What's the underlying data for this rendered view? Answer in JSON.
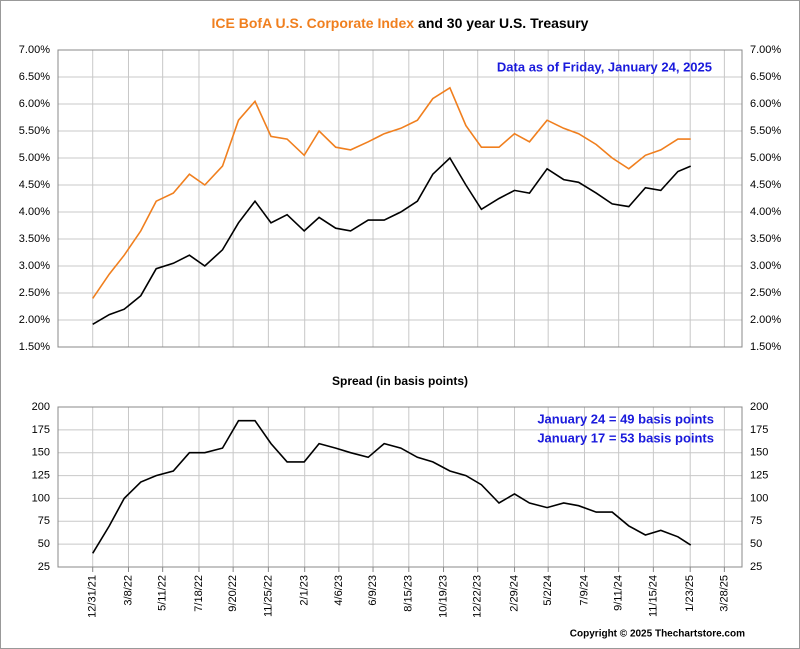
{
  "chart_data": [
    {
      "type": "line",
      "title": {
        "highlight": "ICE BofA U.S. Corporate Index",
        "highlight_color": "#f07f1e",
        "rest": "and 30 year U.S. Treasury"
      },
      "annotation": "Data as of Friday, January 24, 2025",
      "x": [
        "12/31/21",
        "1/31/22",
        "2/28/22",
        "3/31/22",
        "4/29/22",
        "5/31/22",
        "6/30/22",
        "7/29/22",
        "8/31/22",
        "9/30/22",
        "10/31/22",
        "11/30/22",
        "12/30/22",
        "1/31/23",
        "2/28/23",
        "3/31/23",
        "4/28/23",
        "5/31/23",
        "6/30/23",
        "7/31/23",
        "8/31/23",
        "9/29/23",
        "10/31/23",
        "11/30/23",
        "12/29/23",
        "1/31/24",
        "2/29/24",
        "3/28/24",
        "4/30/24",
        "5/31/24",
        "6/28/24",
        "7/31/24",
        "8/30/24",
        "9/30/24",
        "10/31/24",
        "11/29/24",
        "12/31/24",
        "1/24/25"
      ],
      "series": [
        {
          "color": "#f07f1e",
          "values": [
            2.4,
            2.85,
            3.2,
            3.65,
            4.2,
            4.35,
            4.7,
            4.5,
            4.85,
            5.7,
            6.05,
            5.4,
            5.35,
            5.05,
            5.5,
            5.2,
            5.15,
            5.3,
            5.45,
            5.55,
            5.7,
            6.1,
            6.3,
            5.6,
            5.2,
            5.2,
            5.45,
            5.3,
            5.7,
            5.55,
            5.45,
            5.25,
            5.0,
            4.8,
            5.05,
            5.15,
            5.35,
            5.35
          ]
        },
        {
          "color": "#000000",
          "values": [
            1.92,
            2.1,
            2.2,
            2.45,
            2.95,
            3.05,
            3.2,
            3.0,
            3.3,
            3.8,
            4.2,
            3.8,
            3.95,
            3.65,
            3.9,
            3.7,
            3.65,
            3.85,
            3.85,
            4.0,
            4.2,
            4.7,
            5.0,
            4.5,
            4.05,
            4.25,
            4.4,
            4.35,
            4.8,
            4.6,
            4.55,
            4.35,
            4.15,
            4.1,
            4.45,
            4.4,
            4.75,
            4.85
          ]
        }
      ],
      "xlim": [
        "10/27/21",
        "4/30/25"
      ],
      "ylim": [
        1.5,
        7.0
      ],
      "yticks": [
        {
          "value": 1.5,
          "label": "1.50%"
        },
        {
          "value": 2.0,
          "label": "2.00%"
        },
        {
          "value": 2.5,
          "label": "2.50%"
        },
        {
          "value": 3.0,
          "label": "3.00%"
        },
        {
          "value": 3.5,
          "label": "3.50%"
        },
        {
          "value": 4.0,
          "label": "4.00%"
        },
        {
          "value": 4.5,
          "label": "4.50%"
        },
        {
          "value": 5.0,
          "label": "5.00%"
        },
        {
          "value": 5.5,
          "label": "5.50%"
        },
        {
          "value": 6.0,
          "label": "6.00%"
        },
        {
          "value": 6.5,
          "label": "6.50%"
        },
        {
          "value": 7.0,
          "label": "7.00%"
        }
      ],
      "grid": true
    },
    {
      "type": "line",
      "title": "Spread (in basis points)",
      "annotations": [
        "January 24 = 49 basis points",
        "January 17 = 53 basis points"
      ],
      "x": [
        "12/31/21",
        "1/31/22",
        "2/28/22",
        "3/31/22",
        "4/29/22",
        "5/31/22",
        "6/30/22",
        "7/29/22",
        "8/31/22",
        "9/30/22",
        "10/31/22",
        "11/30/22",
        "12/30/22",
        "1/31/23",
        "2/28/23",
        "3/31/23",
        "4/28/23",
        "5/31/23",
        "6/30/23",
        "7/31/23",
        "8/31/23",
        "9/29/23",
        "10/31/23",
        "11/30/23",
        "12/29/23",
        "1/31/24",
        "2/29/24",
        "3/28/24",
        "4/30/24",
        "5/31/24",
        "6/28/24",
        "7/31/24",
        "8/30/24",
        "9/30/24",
        "10/31/24",
        "11/29/24",
        "12/31/24",
        "1/24/25"
      ],
      "series": [
        {
          "color": "#000000",
          "values": [
            40,
            70,
            100,
            118,
            125,
            130,
            150,
            150,
            155,
            185,
            185,
            160,
            140,
            140,
            160,
            155,
            150,
            145,
            160,
            155,
            145,
            140,
            130,
            125,
            115,
            95,
            105,
            95,
            90,
            95,
            92,
            85,
            85,
            70,
            60,
            65,
            58,
            49
          ]
        }
      ],
      "xlim": [
        "10/27/21",
        "4/30/25"
      ],
      "xticks": [
        "12/31/21",
        "3/8/22",
        "5/11/22",
        "7/18/22",
        "9/20/22",
        "11/25/22",
        "2/1/23",
        "4/6/23",
        "6/9/23",
        "8/15/23",
        "10/19/23",
        "12/22/23",
        "2/29/24",
        "5/2/24",
        "7/9/24",
        "9/11/24",
        "11/15/24",
        "1/23/25",
        "3/28/25"
      ],
      "ylim": [
        25,
        200
      ],
      "yticks": [
        25,
        50,
        75,
        100,
        125,
        150,
        175,
        200
      ],
      "grid": true,
      "copyright": "Copyright © 2025 Thechartstore.com"
    }
  ]
}
